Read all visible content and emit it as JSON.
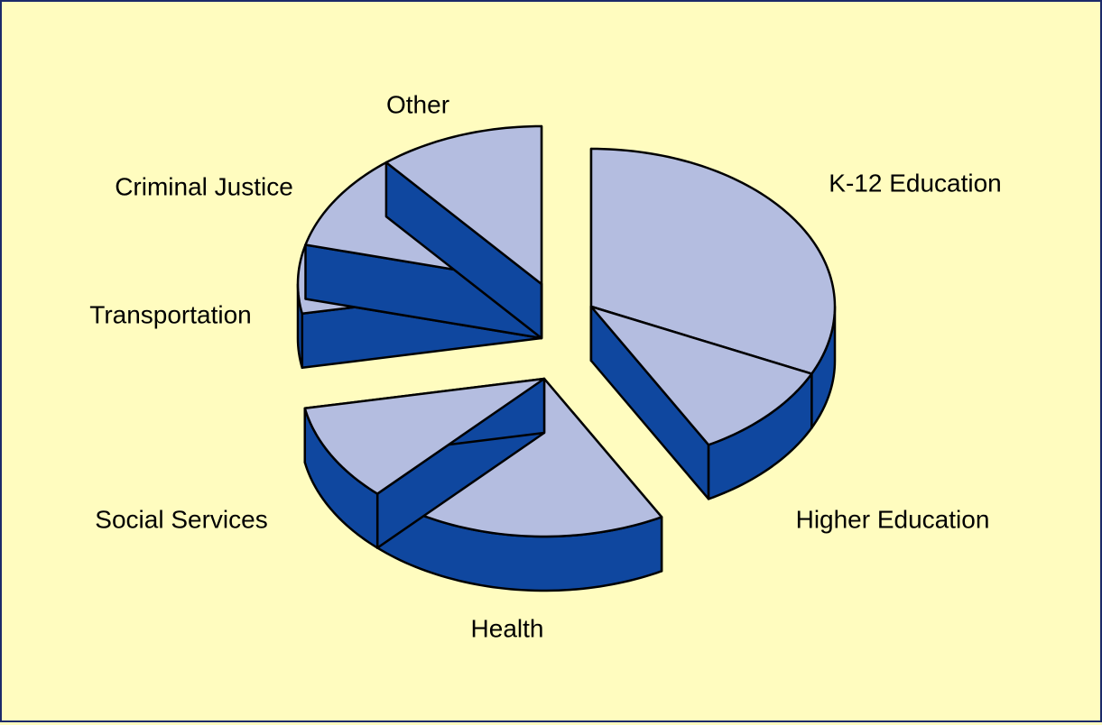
{
  "chart_data": {
    "type": "pie",
    "categories": [
      "K-12 Education",
      "Higher Education",
      "Health",
      "Social Services",
      "Transportation",
      "Criminal Justice",
      "Other"
    ],
    "values": [
      32,
      10,
      20,
      10,
      7,
      10,
      11
    ],
    "colors": {
      "top": "#b4bde0",
      "side": "#0f479f"
    }
  }
}
